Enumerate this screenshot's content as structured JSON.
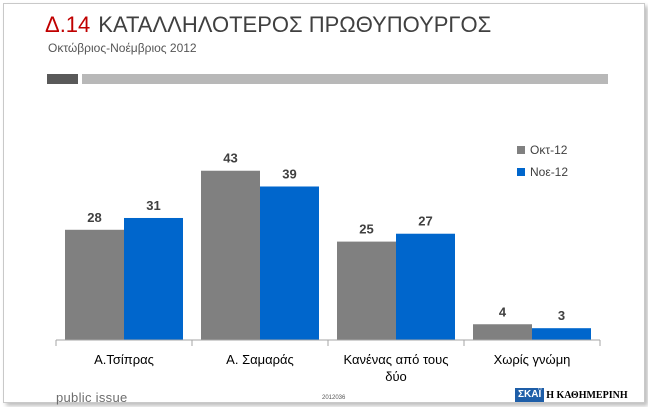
{
  "header": {
    "code": "Δ.14",
    "title": "ΚΑΤΑΛΛΗΛΟΤΕΡΟΣ ΠΡΩΘΥΠΟΥΡΓΟΣ",
    "subtitle": "Οκτώβριος-Νοέμβριος 2012"
  },
  "footer": {
    "brand": "public issue",
    "code": "2012036",
    "logo_skai": "ΣΚΑΪ",
    "logo_kathimerini": "Η ΚΑΘΗΜΕΡΙΝΗ"
  },
  "colors": {
    "accent": "#c00000",
    "series_oct": "#808080",
    "series_nov": "#0066cc"
  },
  "chart_data": {
    "type": "bar",
    "categories": [
      [
        "Α.Τσίπρας"
      ],
      [
        "Α. Σαμαράς"
      ],
      [
        "Κανένας από τους",
        "δύο"
      ],
      [
        "Χωρίς γνώμη"
      ]
    ],
    "series": [
      {
        "name": "Οκτ-12",
        "values": [
          28,
          43,
          25,
          4
        ],
        "color": "#808080"
      },
      {
        "name": "Νοε-12",
        "values": [
          31,
          39,
          27,
          3
        ],
        "color": "#0066cc"
      }
    ],
    "ylim": [
      0,
      47
    ],
    "legend_position": "top-right",
    "grid": false
  }
}
